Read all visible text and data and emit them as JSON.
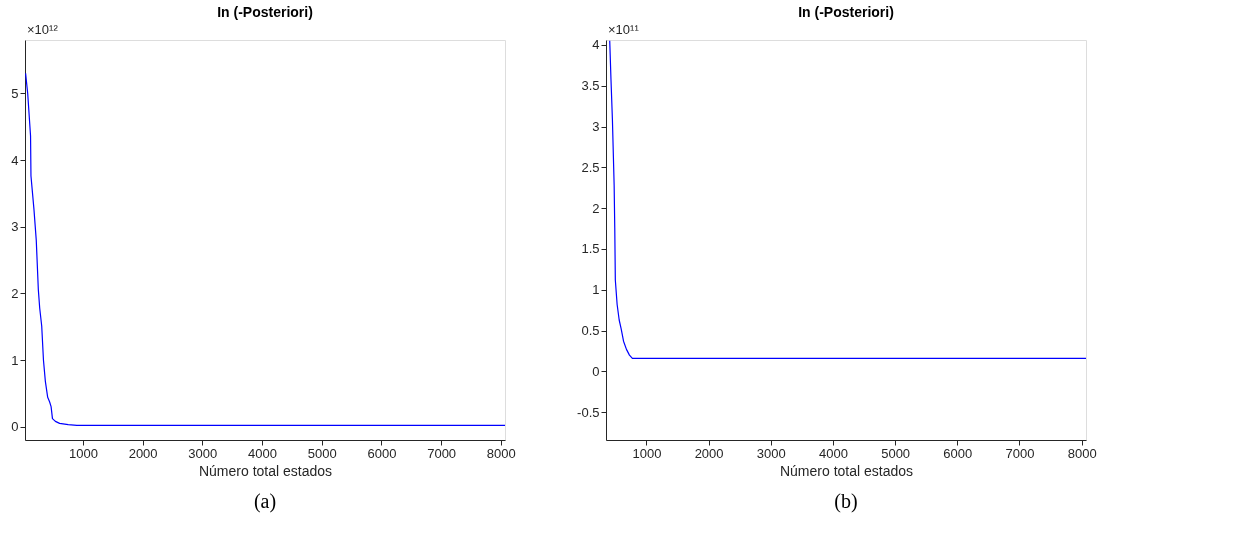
{
  "chart_data": [
    {
      "type": "line",
      "title": "In (-Posteriori)",
      "xlabel": "Número total estados",
      "xlim": [
        30,
        8070
      ],
      "ylim": [
        -0.2,
        5.8
      ],
      "xticks": [
        1000,
        2000,
        3000,
        4000,
        5000,
        6000,
        7000,
        8000
      ],
      "yticks": [
        0,
        1,
        2,
        3,
        4,
        5
      ],
      "grid": false,
      "annotations": [
        "×10¹²",
        "(a)"
      ],
      "series": [
        {
          "color": "#0000ff",
          "x": [
            40,
            75,
            123,
            130,
            180,
            219,
            253,
            276,
            310,
            339,
            371,
            410,
            443,
            467,
            490,
            539,
            610,
            753,
            900,
            2000,
            4000,
            6000,
            8070
          ],
          "values": [
            5.3,
            5.0,
            4.36,
            3.76,
            3.26,
            2.79,
            2.06,
            1.78,
            1.51,
            1.0,
            0.68,
            0.44,
            0.37,
            0.3,
            0.12,
            0.08,
            0.05,
            0.03,
            0.02,
            0.02,
            0.02,
            0.02,
            0.02
          ]
        }
      ]
    },
    {
      "type": "line",
      "title": "In (-Posteriori)",
      "xlabel": "Número total estados",
      "xlim": [
        350,
        8070
      ],
      "ylim": [
        -0.84,
        4.06
      ],
      "xticks": [
        1000,
        2000,
        3000,
        4000,
        5000,
        6000,
        7000,
        8000
      ],
      "yticks": [
        -0.5,
        0,
        0.5,
        1,
        1.5,
        2,
        2.5,
        3,
        3.5,
        4
      ],
      "grid": false,
      "annotations": [
        "×10¹¹",
        "(b)"
      ],
      "series": [
        {
          "color": "#0000ff",
          "x": [
            410,
            430,
            453,
            481,
            491,
            500,
            529,
            562,
            594,
            632,
            679,
            727,
            774,
            915,
            2000,
            4000,
            6000,
            8070
          ],
          "values": [
            4.05,
            3.58,
            3.09,
            2.28,
            1.76,
            1.12,
            0.82,
            0.63,
            0.52,
            0.37,
            0.27,
            0.2,
            0.16,
            0.16,
            0.16,
            0.16,
            0.16,
            0.16
          ]
        }
      ]
    }
  ]
}
